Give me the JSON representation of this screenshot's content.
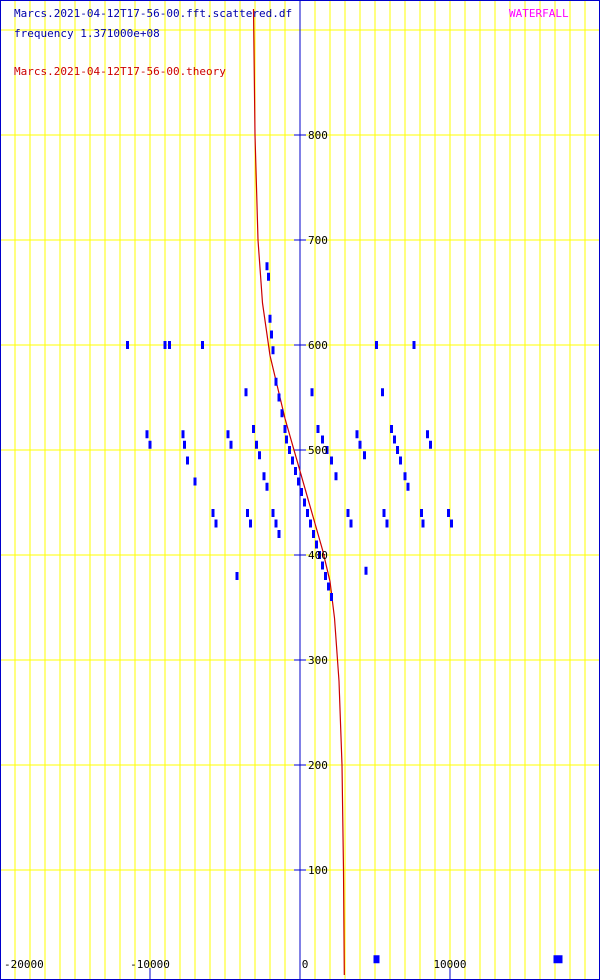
{
  "header": {
    "data_file": "Marcs.2021-04-12T17-56-00.fft.scattered.df",
    "frequency": "frequency 1.371000e+08",
    "theory_file": "Marcs.2021-04-12T17-56-00.theory",
    "mode": "WATERFALL"
  },
  "colors": {
    "grid": "#ffff00",
    "axis": "#0000cc",
    "points": "#0000ff",
    "theory": "#cc0000",
    "tick_text": "#000000",
    "header_text": "#0000aa",
    "mode_text": "#ff00ff"
  },
  "chart_data": {
    "type": "scatter",
    "title": "",
    "xlabel": "",
    "ylabel": "",
    "xlim": [
      -20000,
      20000
    ],
    "ylim": [
      0,
      920
    ],
    "x_ticks": [
      -20000,
      -10000,
      0,
      10000
    ],
    "y_ticks": [
      100,
      200,
      300,
      400,
      500,
      600,
      700,
      800
    ],
    "x_tick_labels": [
      "-20000",
      "-10000",
      "0",
      "10000"
    ],
    "y_tick_labels": [
      "100",
      "200",
      "300",
      "400",
      "500",
      "600",
      "700",
      "800"
    ],
    "grid": true,
    "series": [
      {
        "kind": "points",
        "points": [
          [
            -11500,
            600
          ],
          [
            -9000,
            600
          ],
          [
            -8700,
            600
          ],
          [
            -6500,
            600
          ],
          [
            -10200,
            515
          ],
          [
            -10000,
            505
          ],
          [
            -7800,
            515
          ],
          [
            -7700,
            505
          ],
          [
            -7500,
            490
          ],
          [
            -7000,
            470
          ],
          [
            -5800,
            440
          ],
          [
            -5600,
            430
          ],
          [
            -4800,
            515
          ],
          [
            -4600,
            505
          ],
          [
            -4200,
            380
          ],
          [
            -3600,
            555
          ],
          [
            -3500,
            440
          ],
          [
            -3300,
            430
          ],
          [
            -3100,
            520
          ],
          [
            -2900,
            505
          ],
          [
            -2700,
            495
          ],
          [
            -2400,
            475
          ],
          [
            -2200,
            465
          ],
          [
            -1800,
            440
          ],
          [
            -1600,
            430
          ],
          [
            -1400,
            420
          ],
          [
            -2200,
            675
          ],
          [
            -2100,
            665
          ],
          [
            -2000,
            625
          ],
          [
            -1900,
            610
          ],
          [
            -1800,
            595
          ],
          [
            -1600,
            565
          ],
          [
            -1400,
            550
          ],
          [
            -1200,
            535
          ],
          [
            -1000,
            520
          ],
          [
            -900,
            510
          ],
          [
            -700,
            500
          ],
          [
            -500,
            490
          ],
          [
            -300,
            480
          ],
          [
            -100,
            470
          ],
          [
            100,
            460
          ],
          [
            300,
            450
          ],
          [
            500,
            440
          ],
          [
            700,
            430
          ],
          [
            900,
            420
          ],
          [
            1100,
            410
          ],
          [
            1300,
            400
          ],
          [
            1500,
            390
          ],
          [
            1700,
            380
          ],
          [
            1900,
            370
          ],
          [
            2100,
            360
          ],
          [
            800,
            555
          ],
          [
            1200,
            520
          ],
          [
            1500,
            510
          ],
          [
            1800,
            500
          ],
          [
            2100,
            490
          ],
          [
            2400,
            475
          ],
          [
            3200,
            440
          ],
          [
            3400,
            430
          ],
          [
            3800,
            515
          ],
          [
            4000,
            505
          ],
          [
            4300,
            495
          ],
          [
            4400,
            385
          ],
          [
            5100,
            600
          ],
          [
            5500,
            555
          ],
          [
            5600,
            440
          ],
          [
            5800,
            430
          ],
          [
            6100,
            520
          ],
          [
            6300,
            510
          ],
          [
            6500,
            500
          ],
          [
            6700,
            490
          ],
          [
            7000,
            475
          ],
          [
            7200,
            465
          ],
          [
            7600,
            600
          ],
          [
            8100,
            440
          ],
          [
            8200,
            430
          ],
          [
            8500,
            515
          ],
          [
            8700,
            505
          ],
          [
            9900,
            440
          ],
          [
            10100,
            430
          ],
          [
            5000,
            15
          ],
          [
            5200,
            15
          ],
          [
            17000,
            15
          ],
          [
            17200,
            15
          ],
          [
            17400,
            15
          ]
        ]
      },
      {
        "kind": "theory-line",
        "points": [
          [
            -3100,
            920
          ],
          [
            -3000,
            800
          ],
          [
            -2800,
            700
          ],
          [
            -2500,
            640
          ],
          [
            -2000,
            590
          ],
          [
            -1500,
            560
          ],
          [
            -1000,
            530
          ],
          [
            -500,
            505
          ],
          [
            0,
            480
          ],
          [
            500,
            455
          ],
          [
            1000,
            430
          ],
          [
            1500,
            405
          ],
          [
            2000,
            375
          ],
          [
            2300,
            340
          ],
          [
            2600,
            280
          ],
          [
            2800,
            200
          ],
          [
            2900,
            100
          ],
          [
            2950,
            0
          ]
        ]
      }
    ]
  }
}
